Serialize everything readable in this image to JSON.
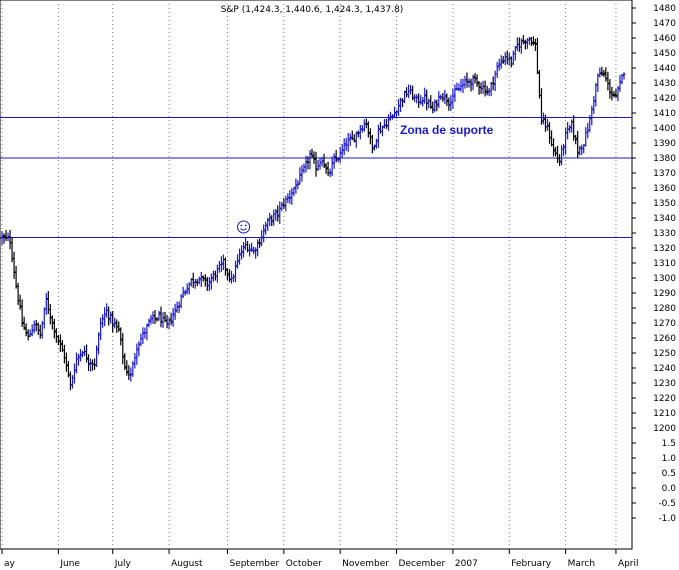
{
  "chart_data": {
    "type": "ohlc",
    "title": "S&P (1,424.3, 1,440.6, 1,424.3, 1,437.8)",
    "y_ticks": [
      "1480",
      "1470",
      "1460",
      "1450",
      "1440",
      "1430",
      "1420",
      "1410",
      "1400",
      "1390",
      "1380",
      "1370",
      "1360",
      "1350",
      "1340",
      "1330",
      "1320",
      "1310",
      "1300",
      "1290",
      "1280",
      "1270",
      "1260",
      "1250",
      "1240",
      "1230",
      "1220",
      "1210",
      "1200",
      "1.5",
      "1.0",
      "0.5",
      "0.0",
      "-0.5",
      "-1.0"
    ],
    "x_ticks": [
      "ay",
      "June",
      "July",
      "August",
      "September",
      "October",
      "November",
      "December",
      "2007",
      "February",
      "March",
      "April"
    ],
    "x_tick_index": [
      0,
      28,
      55,
      83,
      112,
      140,
      168,
      196,
      224,
      252,
      280,
      305
    ],
    "support_levels": [
      1407,
      1380,
      1327
    ],
    "annotation": "Zona de suporte",
    "smiley": {
      "index": 120,
      "price": 1334
    },
    "colors": {
      "up": "#1a1acc",
      "down": "#000000",
      "support": "#1a1acc",
      "grid": "#7f7f7f"
    },
    "n_sessions": 310,
    "closes": [
      {
        "i": 0,
        "v": 1327
      },
      {
        "i": 4,
        "v": 1325
      },
      {
        "i": 7,
        "v": 1295
      },
      {
        "i": 10,
        "v": 1270
      },
      {
        "i": 13,
        "v": 1260
      },
      {
        "i": 16,
        "v": 1270
      },
      {
        "i": 19,
        "v": 1262
      },
      {
        "i": 22,
        "v": 1285
      },
      {
        "i": 25,
        "v": 1270
      },
      {
        "i": 28,
        "v": 1258
      },
      {
        "i": 31,
        "v": 1248
      },
      {
        "i": 34,
        "v": 1228
      },
      {
        "i": 37,
        "v": 1246
      },
      {
        "i": 40,
        "v": 1252
      },
      {
        "i": 43,
        "v": 1245
      },
      {
        "i": 46,
        "v": 1243
      },
      {
        "i": 49,
        "v": 1270
      },
      {
        "i": 52,
        "v": 1278
      },
      {
        "i": 55,
        "v": 1270
      },
      {
        "i": 58,
        "v": 1265
      },
      {
        "i": 61,
        "v": 1240
      },
      {
        "i": 64,
        "v": 1235
      },
      {
        "i": 67,
        "v": 1255
      },
      {
        "i": 70,
        "v": 1262
      },
      {
        "i": 74,
        "v": 1272
      },
      {
        "i": 78,
        "v": 1274
      },
      {
        "i": 82,
        "v": 1268
      },
      {
        "i": 86,
        "v": 1278
      },
      {
        "i": 90,
        "v": 1290
      },
      {
        "i": 94,
        "v": 1298
      },
      {
        "i": 98,
        "v": 1300
      },
      {
        "i": 102,
        "v": 1296
      },
      {
        "i": 106,
        "v": 1303
      },
      {
        "i": 110,
        "v": 1310
      },
      {
        "i": 114,
        "v": 1298
      },
      {
        "i": 118,
        "v": 1315
      },
      {
        "i": 121,
        "v": 1322
      },
      {
        "i": 125,
        "v": 1318
      },
      {
        "i": 128,
        "v": 1325
      },
      {
        "i": 131,
        "v": 1335
      },
      {
        "i": 134,
        "v": 1340
      },
      {
        "i": 137,
        "v": 1343
      },
      {
        "i": 140,
        "v": 1350
      },
      {
        "i": 143,
        "v": 1355
      },
      {
        "i": 147,
        "v": 1364
      },
      {
        "i": 150,
        "v": 1372
      },
      {
        "i": 153,
        "v": 1382
      },
      {
        "i": 156,
        "v": 1374
      },
      {
        "i": 159,
        "v": 1380
      },
      {
        "i": 162,
        "v": 1368
      },
      {
        "i": 165,
        "v": 1378
      },
      {
        "i": 168,
        "v": 1382
      },
      {
        "i": 171,
        "v": 1390
      },
      {
        "i": 174,
        "v": 1392
      },
      {
        "i": 178,
        "v": 1400
      },
      {
        "i": 181,
        "v": 1404
      },
      {
        "i": 184,
        "v": 1386
      },
      {
        "i": 187,
        "v": 1398
      },
      {
        "i": 190,
        "v": 1402
      },
      {
        "i": 194,
        "v": 1408
      },
      {
        "i": 198,
        "v": 1418
      },
      {
        "i": 202,
        "v": 1425
      },
      {
        "i": 206,
        "v": 1418
      },
      {
        "i": 210,
        "v": 1420
      },
      {
        "i": 214,
        "v": 1412
      },
      {
        "i": 218,
        "v": 1423
      },
      {
        "i": 222,
        "v": 1418
      },
      {
        "i": 226,
        "v": 1425
      },
      {
        "i": 230,
        "v": 1430
      },
      {
        "i": 234,
        "v": 1432
      },
      {
        "i": 238,
        "v": 1428
      },
      {
        "i": 242,
        "v": 1424
      },
      {
        "i": 246,
        "v": 1440
      },
      {
        "i": 250,
        "v": 1448
      },
      {
        "i": 253,
        "v": 1444
      },
      {
        "i": 256,
        "v": 1455
      },
      {
        "i": 259,
        "v": 1458
      },
      {
        "i": 262,
        "v": 1460
      },
      {
        "i": 265,
        "v": 1455
      },
      {
        "i": 268,
        "v": 1405
      },
      {
        "i": 271,
        "v": 1400
      },
      {
        "i": 274,
        "v": 1385
      },
      {
        "i": 277,
        "v": 1378
      },
      {
        "i": 280,
        "v": 1395
      },
      {
        "i": 283,
        "v": 1402
      },
      {
        "i": 286,
        "v": 1385
      },
      {
        "i": 289,
        "v": 1390
      },
      {
        "i": 292,
        "v": 1405
      },
      {
        "i": 294,
        "v": 1420
      },
      {
        "i": 296,
        "v": 1435
      },
      {
        "i": 299,
        "v": 1436
      },
      {
        "i": 302,
        "v": 1425
      },
      {
        "i": 305,
        "v": 1420
      },
      {
        "i": 309,
        "v": 1438
      }
    ]
  }
}
